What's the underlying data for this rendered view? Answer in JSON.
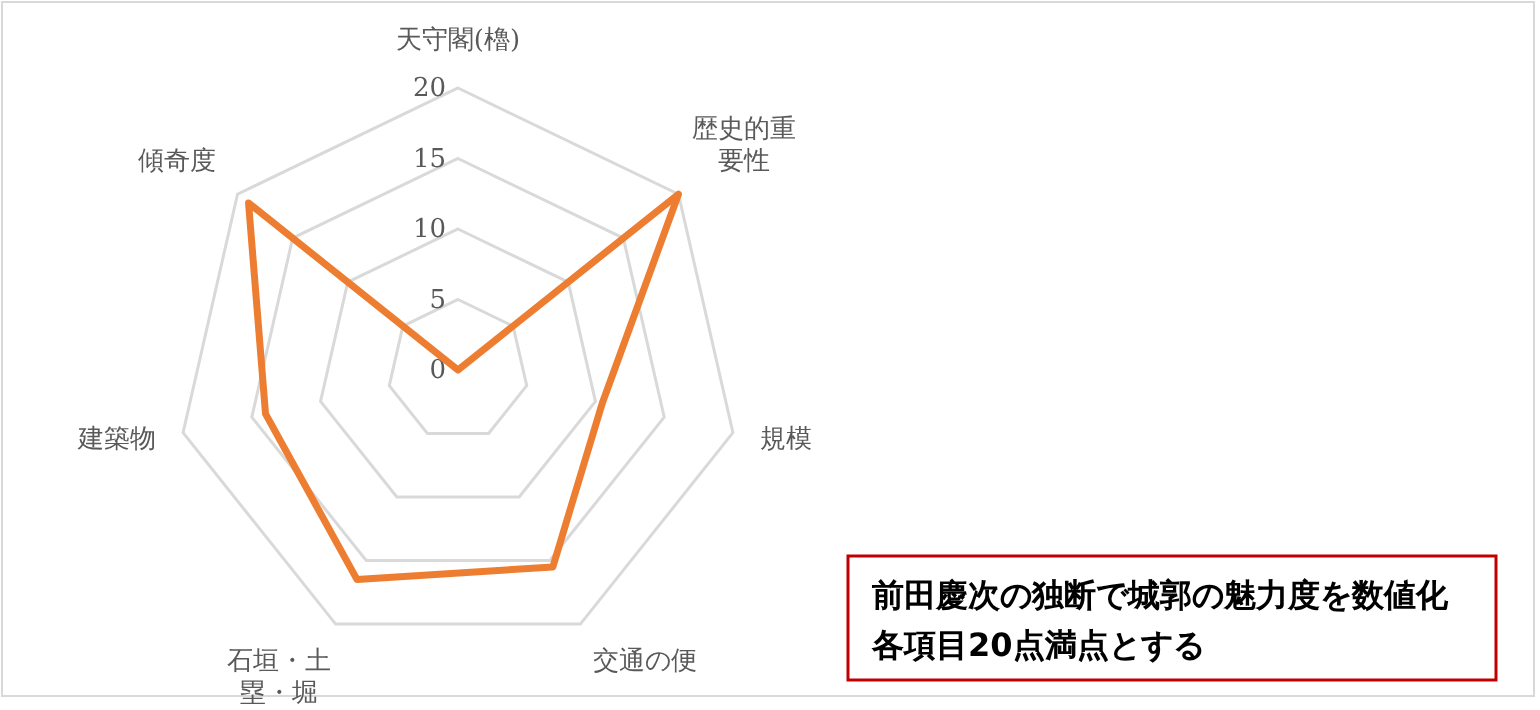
{
  "chart_data": {
    "type": "radar",
    "categories": [
      "天守閣(櫓)",
      "歴史的重要性",
      "規模",
      "交通の便",
      "石垣・土塁・堀",
      "建築物",
      "傾奇度"
    ],
    "series": [
      {
        "color": "#ed7d31",
        "values": [
          0,
          20,
          10.5,
          15.5,
          16.5,
          14,
          19
        ]
      }
    ],
    "ylim": [
      0,
      20
    ],
    "yticks": [
      0,
      5,
      10,
      15,
      20
    ],
    "grid": true,
    "marker": "none",
    "line_style": "solid",
    "annotations": [
      "前田慶次の独断で城郭の魅力度を数値化",
      "各項目20点満点とする"
    ]
  }
}
